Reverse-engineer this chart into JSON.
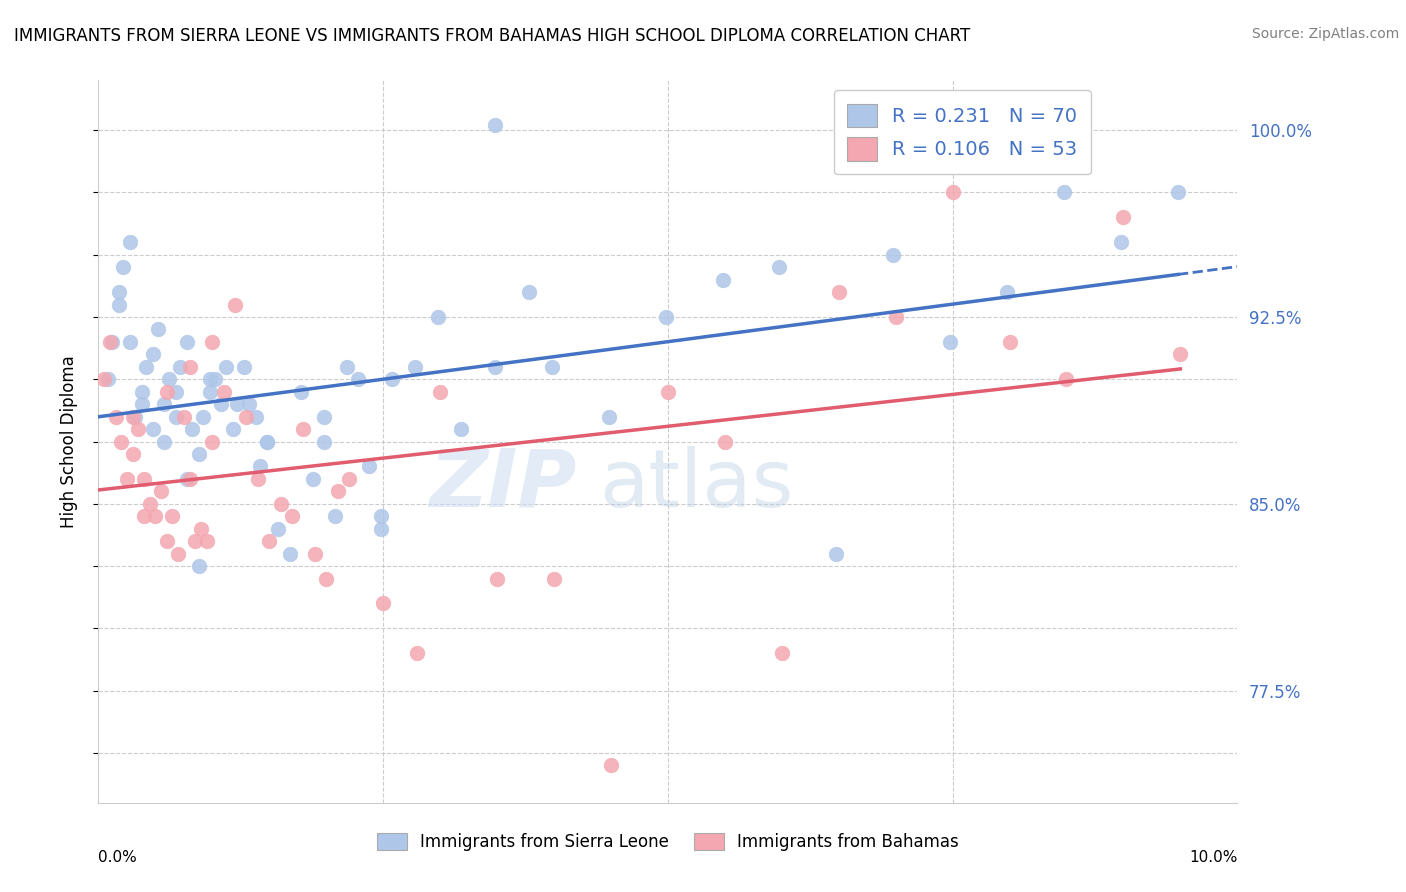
{
  "title": "IMMIGRANTS FROM SIERRA LEONE VS IMMIGRANTS FROM BAHAMAS HIGH SCHOOL DIPLOMA CORRELATION CHART",
  "source": "Source: ZipAtlas.com",
  "ylabel": "High School Diploma",
  "yticks": [
    75.0,
    77.5,
    80.0,
    82.5,
    85.0,
    87.5,
    90.0,
    92.5,
    95.0,
    97.5,
    100.0
  ],
  "ytick_labels": [
    "",
    "77.5%",
    "",
    "",
    "85.0%",
    "",
    "",
    "92.5%",
    "",
    "",
    "100.0%"
  ],
  "xlim": [
    0.0,
    10.0
  ],
  "ylim": [
    73.0,
    102.0
  ],
  "sierra_leone_R": 0.231,
  "sierra_leone_N": 70,
  "bahamas_R": 0.106,
  "bahamas_N": 53,
  "sierra_leone_color": "#aec6e8",
  "bahamas_color": "#f4a7b0",
  "sierra_leone_line_color": "#4472c4",
  "bahamas_line_color": "#e05c6e",
  "legend_text_color": "#4472c4",
  "watermark_zip": "ZIP",
  "watermark_atlas": "atlas",
  "sierra_leone_x": [
    0.08,
    0.12,
    0.18,
    0.22,
    0.28,
    0.32,
    0.38,
    0.42,
    0.48,
    0.52,
    0.58,
    0.62,
    0.68,
    0.72,
    0.78,
    0.82,
    0.88,
    0.92,
    0.98,
    1.02,
    1.08,
    1.12,
    1.18,
    1.22,
    1.28,
    1.32,
    1.38,
    1.42,
    1.48,
    1.58,
    1.68,
    1.78,
    1.88,
    1.98,
    2.08,
    2.18,
    2.28,
    2.38,
    2.48,
    2.58,
    2.78,
    2.98,
    3.18,
    3.48,
    3.78,
    3.98,
    4.48,
    4.98,
    5.48,
    5.98,
    6.48,
    6.98,
    7.48,
    7.98,
    8.48,
    8.98,
    9.48,
    0.18,
    0.28,
    0.38,
    0.48,
    0.58,
    0.68,
    0.78,
    0.88,
    0.98,
    1.48,
    1.98,
    2.48,
    3.48
  ],
  "sierra_leone_y": [
    90.0,
    91.5,
    93.5,
    94.5,
    95.5,
    88.5,
    89.5,
    90.5,
    91.0,
    92.0,
    89.0,
    90.0,
    89.5,
    90.5,
    91.5,
    88.0,
    87.0,
    88.5,
    89.5,
    90.0,
    89.0,
    90.5,
    88.0,
    89.0,
    90.5,
    89.0,
    88.5,
    86.5,
    87.5,
    84.0,
    83.0,
    89.5,
    86.0,
    87.5,
    84.5,
    90.5,
    90.0,
    86.5,
    84.5,
    90.0,
    90.5,
    92.5,
    88.0,
    90.5,
    93.5,
    90.5,
    88.5,
    92.5,
    94.0,
    94.5,
    83.0,
    95.0,
    91.5,
    93.5,
    97.5,
    95.5,
    97.5,
    93.0,
    91.5,
    89.0,
    88.0,
    87.5,
    88.5,
    86.0,
    82.5,
    90.0,
    87.5,
    88.5,
    84.0,
    100.2
  ],
  "bahamas_x": [
    0.05,
    0.1,
    0.15,
    0.2,
    0.25,
    0.3,
    0.35,
    0.4,
    0.45,
    0.5,
    0.55,
    0.6,
    0.65,
    0.7,
    0.75,
    0.8,
    0.85,
    0.9,
    0.95,
    1.0,
    1.1,
    1.2,
    1.3,
    1.4,
    1.5,
    1.6,
    1.7,
    1.8,
    1.9,
    2.0,
    2.1,
    2.2,
    2.5,
    2.8,
    3.0,
    3.5,
    4.0,
    4.5,
    5.0,
    5.5,
    6.0,
    6.5,
    7.0,
    7.5,
    8.0,
    8.5,
    9.0,
    9.5,
    0.3,
    0.4,
    0.6,
    0.8,
    1.0
  ],
  "bahamas_y": [
    90.0,
    91.5,
    88.5,
    87.5,
    86.0,
    87.0,
    88.0,
    84.5,
    85.0,
    84.5,
    85.5,
    83.5,
    84.5,
    83.0,
    88.5,
    86.0,
    83.5,
    84.0,
    83.5,
    87.5,
    89.5,
    93.0,
    88.5,
    86.0,
    83.5,
    85.0,
    84.5,
    88.0,
    83.0,
    82.0,
    85.5,
    86.0,
    81.0,
    79.0,
    89.5,
    82.0,
    82.0,
    74.5,
    89.5,
    87.5,
    79.0,
    93.5,
    92.5,
    97.5,
    91.5,
    90.0,
    96.5,
    91.0,
    88.5,
    86.0,
    89.5,
    90.5,
    91.5
  ]
}
